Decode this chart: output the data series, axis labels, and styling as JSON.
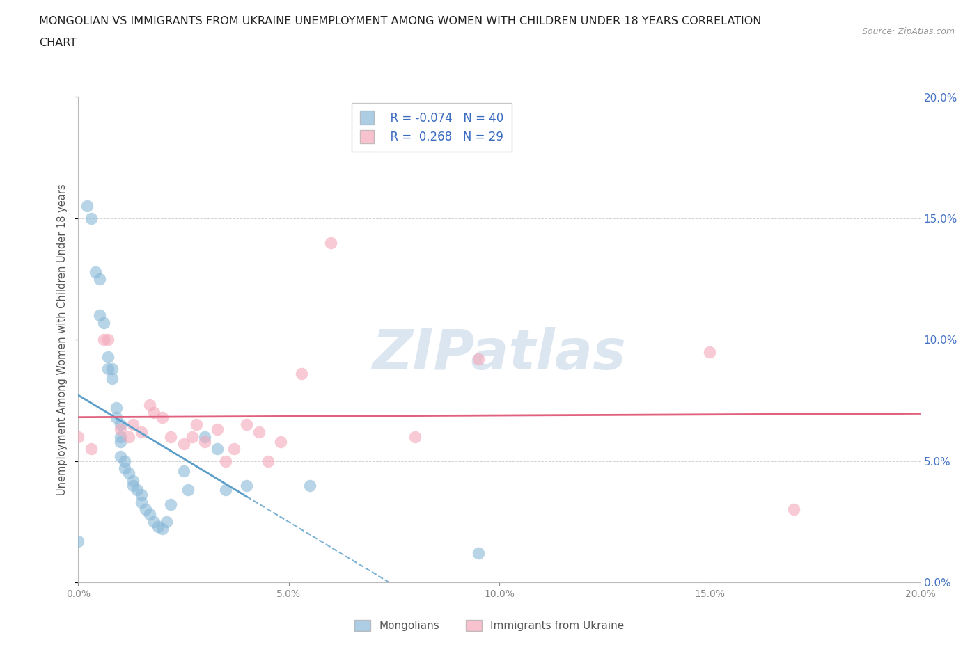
{
  "title_line1": "MONGOLIAN VS IMMIGRANTS FROM UKRAINE UNEMPLOYMENT AMONG WOMEN WITH CHILDREN UNDER 18 YEARS CORRELATION",
  "title_line2": "CHART",
  "source": "Source: ZipAtlas.com",
  "ylabel": "Unemployment Among Women with Children Under 18 years",
  "xlim": [
    0.0,
    0.2
  ],
  "ylim": [
    0.0,
    0.2
  ],
  "xticks": [
    0.0,
    0.05,
    0.1,
    0.15,
    0.2
  ],
  "yticks": [
    0.0,
    0.05,
    0.1,
    0.15,
    0.2
  ],
  "mongolian_color": "#89b8d8",
  "ukraine_color": "#f4a7b9",
  "mongolian_line_color": "#5a9ec9",
  "ukraine_line_color": "#e0607e",
  "mongolian_R": -0.074,
  "mongolian_N": 40,
  "ukraine_R": 0.268,
  "ukraine_N": 29,
  "mongolian_x": [
    0.0,
    0.002,
    0.003,
    0.004,
    0.005,
    0.005,
    0.006,
    0.007,
    0.007,
    0.008,
    0.008,
    0.009,
    0.009,
    0.01,
    0.01,
    0.01,
    0.01,
    0.011,
    0.011,
    0.012,
    0.013,
    0.013,
    0.014,
    0.015,
    0.015,
    0.016,
    0.017,
    0.018,
    0.019,
    0.02,
    0.021,
    0.022,
    0.025,
    0.026,
    0.03,
    0.033,
    0.035,
    0.04,
    0.055,
    0.095
  ],
  "mongolian_y": [
    0.017,
    0.155,
    0.15,
    0.128,
    0.125,
    0.11,
    0.107,
    0.093,
    0.088,
    0.088,
    0.084,
    0.072,
    0.068,
    0.065,
    0.06,
    0.058,
    0.052,
    0.05,
    0.047,
    0.045,
    0.042,
    0.04,
    0.038,
    0.036,
    0.033,
    0.03,
    0.028,
    0.025,
    0.023,
    0.022,
    0.025,
    0.032,
    0.046,
    0.038,
    0.06,
    0.055,
    0.038,
    0.04,
    0.04,
    0.012
  ],
  "ukraine_x": [
    0.0,
    0.003,
    0.006,
    0.007,
    0.01,
    0.012,
    0.013,
    0.015,
    0.017,
    0.018,
    0.02,
    0.022,
    0.025,
    0.027,
    0.028,
    0.03,
    0.033,
    0.035,
    0.037,
    0.04,
    0.043,
    0.045,
    0.048,
    0.053,
    0.06,
    0.08,
    0.095,
    0.15,
    0.17
  ],
  "ukraine_y": [
    0.06,
    0.055,
    0.1,
    0.1,
    0.063,
    0.06,
    0.065,
    0.062,
    0.073,
    0.07,
    0.068,
    0.06,
    0.057,
    0.06,
    0.065,
    0.058,
    0.063,
    0.05,
    0.055,
    0.065,
    0.062,
    0.05,
    0.058,
    0.086,
    0.14,
    0.06,
    0.092,
    0.095,
    0.03
  ],
  "background_color": "#ffffff",
  "grid_color": "#cccccc",
  "title_color": "#222222",
  "right_axis_color": "#4472c4",
  "watermark": "ZIPatlas",
  "watermark_color": "#dce6f1"
}
